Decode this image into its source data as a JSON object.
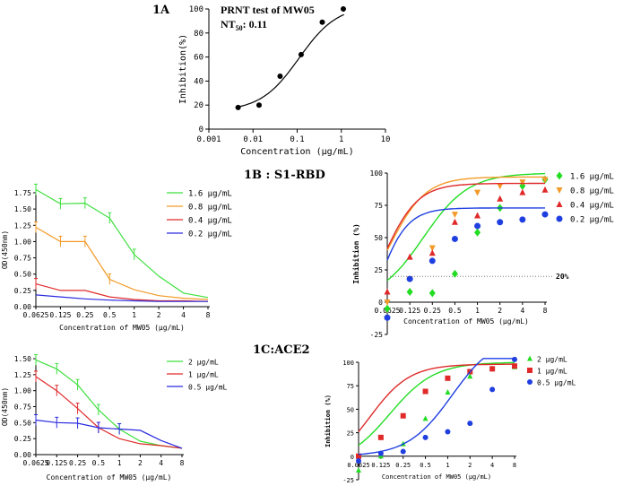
{
  "panel_labels": {
    "p1a": "1A",
    "p1b": "1B : S1-RBD",
    "p1c": "1C:ACE2"
  },
  "chart_data": [
    {
      "id": "1A",
      "type": "scatter",
      "scale_x": "log",
      "title": "PRNT test of MW05",
      "annotation": {
        "prefix": "NT",
        "sub": "50",
        "suffix": ": 0.11"
      },
      "xlabel": "Concentration (μg/mL)",
      "ylabel": "Inhibition(%)",
      "xlim": [
        0.001,
        10
      ],
      "ylim": [
        0,
        100
      ],
      "x_ticks": [
        0.001,
        0.01,
        0.1,
        1,
        10
      ],
      "x_tick_labels": [
        "0.001",
        "0.01",
        "0.1",
        "1",
        "10"
      ],
      "y_ticks": [
        0,
        20,
        40,
        60,
        80,
        100
      ],
      "series": [
        {
          "name": "MW05",
          "color": "#000000",
          "x": [
            0.0046,
            0.0137,
            0.041,
            0.123,
            0.37,
            1.11
          ],
          "y": [
            18,
            20,
            44,
            62,
            89,
            100
          ]
        }
      ],
      "fit": {
        "type": "logistic",
        "bottom": 15,
        "top": 103,
        "ec50": 0.11,
        "hill": 1.0
      }
    },
    {
      "id": "1B-left",
      "type": "line",
      "xlabel": "Concentration of MW05 (μg/mL)",
      "ylabel": "OD(450nm)",
      "categories": [
        "0.0625",
        "0.125",
        "0.25",
        "0.5",
        "1",
        "2",
        "4",
        "8"
      ],
      "ylim": [
        0,
        1.75
      ],
      "y_ticks": [
        0,
        0.25,
        0.5,
        0.75,
        1.0,
        1.25,
        1.5,
        1.75
      ],
      "y_tick_labels": [
        "0.00",
        "0.25",
        "0.50",
        "0.75",
        "1.00",
        "1.25",
        "1.50",
        "1.75"
      ],
      "series": [
        {
          "name": "1.6 μg/mL",
          "color": "#3ee03e",
          "values": [
            1.8,
            1.58,
            1.59,
            1.36,
            0.8,
            0.47,
            0.21,
            0.14
          ]
        },
        {
          "name": "0.8 μg/mL",
          "color": "#f39a28",
          "values": [
            1.22,
            1.0,
            1.0,
            0.42,
            0.26,
            0.17,
            0.13,
            0.11
          ]
        },
        {
          "name": "0.4 μg/mL",
          "color": "#e02a2a",
          "values": [
            0.35,
            0.25,
            0.25,
            0.15,
            0.11,
            0.09,
            0.09,
            0.08
          ]
        },
        {
          "name": "0.2 μg/mL",
          "color": "#2a2ae0",
          "values": [
            0.18,
            0.15,
            0.12,
            0.1,
            0.09,
            0.08,
            0.08,
            0.08
          ]
        }
      ]
    },
    {
      "id": "1B-right",
      "type": "scatter",
      "xlabel": "Concentration of MW05 (μg/mL)",
      "ylabel": "Inhibition (%)",
      "categories": [
        "0.0625",
        "0.125",
        "0.25",
        "0.5",
        "1",
        "2",
        "4",
        "8"
      ],
      "ylim": [
        -25,
        100
      ],
      "y_ticks": [
        -25,
        0,
        25,
        50,
        75,
        100
      ],
      "threshold": {
        "value": 20,
        "label": "20%"
      },
      "series": [
        {
          "name": "1.6 μg/mL",
          "color": "#22dd22",
          "marker": "diamond",
          "values": [
            -5,
            8,
            7,
            22,
            54,
            73,
            90,
            95
          ],
          "fit_pos": [
            1.6,
            1.0,
            0,
            100
          ]
        },
        {
          "name": "0.8 μg/mL",
          "color": "#f39a28",
          "marker": "triangle-down",
          "values": [
            0,
            18,
            42,
            68,
            85,
            90,
            93,
            95
          ],
          "fit_pos": [
            0.1,
            0.8,
            -10,
            97
          ]
        },
        {
          "name": "0.4 μg/mL",
          "color": "#e02a2a",
          "marker": "triangle-up",
          "values": [
            8,
            35,
            38,
            62,
            67,
            80,
            85,
            87
          ],
          "fit_pos": [
            -0.15,
            0.75,
            -20,
            92
          ]
        },
        {
          "name": "0.2 μg/mL",
          "color": "#1f3fe0",
          "marker": "circle",
          "values": [
            -12,
            18,
            32,
            49,
            59,
            62,
            64,
            68
          ],
          "fit_pos": [
            -0.5,
            0.65,
            -55,
            73
          ]
        }
      ]
    },
    {
      "id": "1C-left",
      "type": "line",
      "xlabel": "Concentration of MW05 (μg/mL)",
      "ylabel": "OD(450nm)",
      "categories": [
        "0.0625",
        "0.125",
        "0.25",
        "0.5",
        "1",
        "2",
        "4",
        "8"
      ],
      "ylim": [
        0,
        1.5
      ],
      "y_ticks": [
        0,
        0.25,
        0.5,
        0.75,
        1.0,
        1.25,
        1.5
      ],
      "y_tick_labels": [
        "0.00",
        "0.25",
        "0.50",
        "0.75",
        "1.00",
        "1.25",
        "1.50"
      ],
      "series": [
        {
          "name": "2 μg/mL",
          "color": "#3ee03e",
          "values": [
            1.48,
            1.34,
            1.09,
            0.7,
            0.4,
            0.21,
            0.14,
            0.1
          ]
        },
        {
          "name": "1 μg/mL",
          "color": "#e02a2a",
          "values": [
            1.22,
            1.0,
            0.72,
            0.42,
            0.25,
            0.17,
            0.14,
            0.1
          ]
        },
        {
          "name": "0.5 μg/mL",
          "color": "#2a2ae0",
          "values": [
            0.54,
            0.5,
            0.49,
            0.42,
            0.4,
            0.38,
            0.22,
            0.1
          ]
        }
      ]
    },
    {
      "id": "1C-right",
      "type": "scatter",
      "xlabel": "Concentration of MW05 (μg/mL)",
      "ylabel": "Inhibition (%)",
      "categories": [
        "0.0625",
        "0.125",
        "0.25",
        "0.5",
        "1",
        "2",
        "4",
        "8"
      ],
      "ylim": [
        -25,
        100
      ],
      "y_ticks": [
        -25,
        0,
        25,
        50,
        75,
        100
      ],
      "series": [
        {
          "name": "2 μg/mL",
          "color": "#22dd22",
          "marker": "triangle-up",
          "values": [
            -15,
            0,
            13,
            40,
            68,
            85,
            93,
            95
          ],
          "fit_pos": [
            1.4,
            1.0,
            -10,
            100
          ]
        },
        {
          "name": "1 μg/mL",
          "color": "#e02a2a",
          "marker": "square",
          "values": [
            0,
            20,
            43,
            69,
            83,
            90,
            93,
            96
          ],
          "fit_pos": [
            0.5,
            0.9,
            -15,
            98
          ]
        },
        {
          "name": "0.5 μg/mL",
          "color": "#1f3fe0",
          "marker": "circle",
          "values": [
            -5,
            3,
            5,
            20,
            26,
            35,
            71,
            103
          ],
          "fit_pos": [
            4.2,
            1.0,
            0,
            130
          ]
        }
      ]
    }
  ]
}
